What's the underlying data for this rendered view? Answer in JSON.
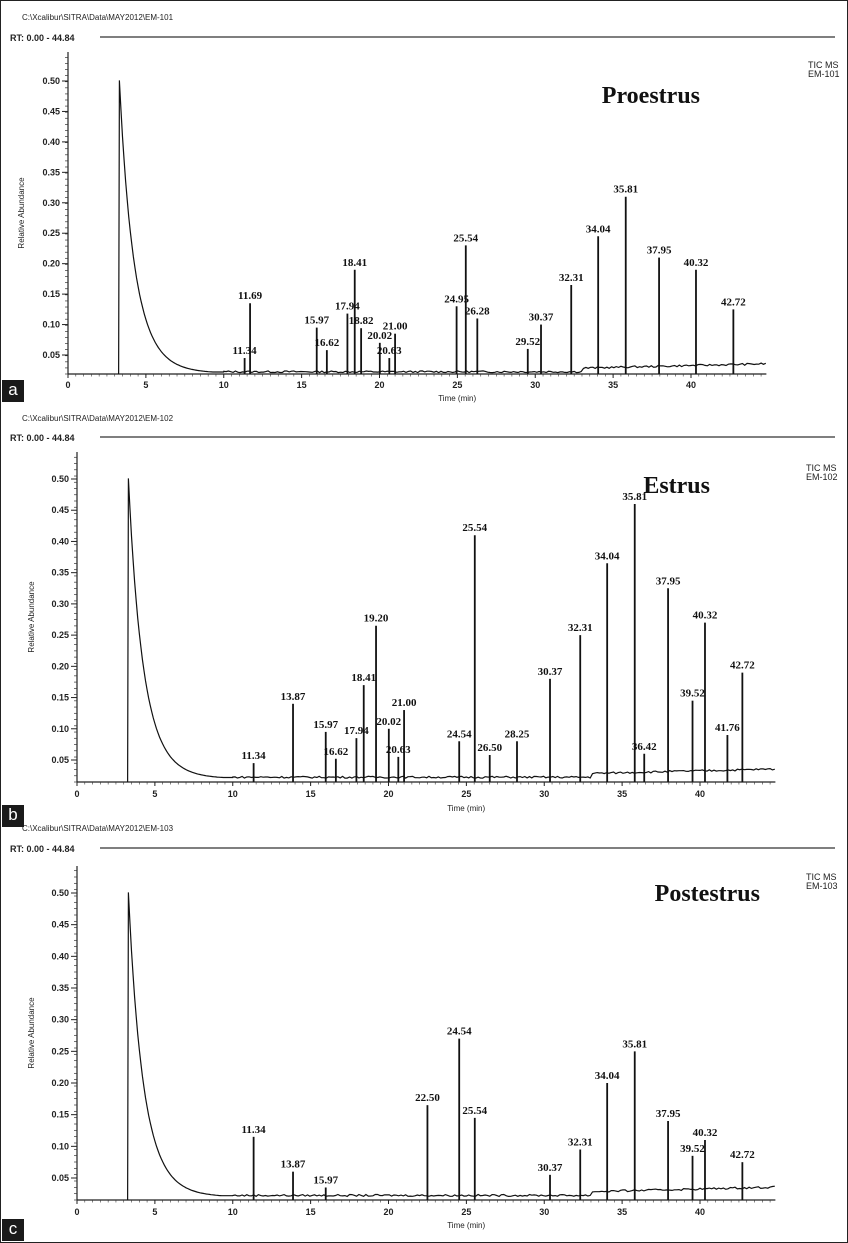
{
  "chart_data": [
    {
      "type": "line",
      "panel_tag": "a",
      "file_path": "C:\\Xcalibur\\SITRA\\Data\\MAY2012\\EM-101",
      "rt_range": "RT: 0.00 - 44.84",
      "title": "Proestrus",
      "tic_label": "TIC MS",
      "sample_label": "EM-101",
      "xlabel": "Time (min)",
      "ylabel": "Relative Abundance",
      "xlim": [
        0,
        44.84
      ],
      "ylim": [
        0.02,
        0.54
      ],
      "x_ticks": [
        "0",
        "5",
        "10",
        "15",
        "20",
        "25",
        "30",
        "35",
        "40"
      ],
      "y_ticks": [
        "0.05",
        "0.10",
        "0.15",
        "0.20",
        "0.25",
        "0.30",
        "0.35",
        "0.40",
        "0.45",
        "0.50"
      ],
      "solvent_peak": {
        "x": 3.3,
        "y": 0.5
      },
      "peaks": [
        {
          "label": "11.34",
          "x": 11.34,
          "y": 0.045
        },
        {
          "label": "11.69",
          "x": 11.69,
          "y": 0.135
        },
        {
          "label": "15.97",
          "x": 15.97,
          "y": 0.095
        },
        {
          "label": "16.62",
          "x": 16.62,
          "y": 0.058
        },
        {
          "label": "17.94",
          "x": 17.94,
          "y": 0.118
        },
        {
          "label": "18.41",
          "x": 18.41,
          "y": 0.19
        },
        {
          "label": "18.82",
          "x": 18.82,
          "y": 0.094
        },
        {
          "label": "20.02",
          "x": 20.02,
          "y": 0.07
        },
        {
          "label": "20.63",
          "x": 20.63,
          "y": 0.045
        },
        {
          "label": "21.00",
          "x": 21.0,
          "y": 0.085
        },
        {
          "label": "24.95",
          "x": 24.95,
          "y": 0.13
        },
        {
          "label": "25.54",
          "x": 25.54,
          "y": 0.23
        },
        {
          "label": "26.28",
          "x": 26.28,
          "y": 0.11
        },
        {
          "label": "29.52",
          "x": 29.52,
          "y": 0.06
        },
        {
          "label": "30.37",
          "x": 30.37,
          "y": 0.1
        },
        {
          "label": "32.31",
          "x": 32.31,
          "y": 0.165
        },
        {
          "label": "34.04",
          "x": 34.04,
          "y": 0.245
        },
        {
          "label": "35.81",
          "x": 35.81,
          "y": 0.31
        },
        {
          "label": "37.95",
          "x": 37.95,
          "y": 0.21
        },
        {
          "label": "40.32",
          "x": 40.32,
          "y": 0.19
        },
        {
          "label": "42.72",
          "x": 42.72,
          "y": 0.125
        }
      ]
    },
    {
      "type": "line",
      "panel_tag": "b",
      "file_path": "C:\\Xcalibur\\SITRA\\Data\\MAY2012\\EM-102",
      "rt_range": "RT: 0.00 - 44.84",
      "title": "Estrus",
      "tic_label": "TIC MS",
      "sample_label": "EM-102",
      "xlabel": "Time (min)",
      "ylabel": "Relative Abundance",
      "xlim": [
        0,
        44.84
      ],
      "ylim": [
        0.02,
        0.54
      ],
      "x_ticks": [
        "0",
        "5",
        "10",
        "15",
        "20",
        "25",
        "30",
        "35",
        "40"
      ],
      "y_ticks": [
        "0.05",
        "0.10",
        "0.15",
        "0.20",
        "0.25",
        "0.30",
        "0.35",
        "0.40",
        "0.45",
        "0.50"
      ],
      "solvent_peak": {
        "x": 3.3,
        "y": 0.5
      },
      "peaks": [
        {
          "label": "11.34",
          "x": 11.34,
          "y": 0.045
        },
        {
          "label": "13.87",
          "x": 13.87,
          "y": 0.14
        },
        {
          "label": "15.97",
          "x": 15.97,
          "y": 0.095
        },
        {
          "label": "16.62",
          "x": 16.62,
          "y": 0.052
        },
        {
          "label": "17.94",
          "x": 17.94,
          "y": 0.085
        },
        {
          "label": "18.41",
          "x": 18.41,
          "y": 0.17
        },
        {
          "label": "19.20",
          "x": 19.2,
          "y": 0.265
        },
        {
          "label": "20.02",
          "x": 20.02,
          "y": 0.1
        },
        {
          "label": "20.63",
          "x": 20.63,
          "y": 0.055
        },
        {
          "label": "21.00",
          "x": 21.0,
          "y": 0.13
        },
        {
          "label": "24.54",
          "x": 24.54,
          "y": 0.08
        },
        {
          "label": "25.54",
          "x": 25.54,
          "y": 0.41
        },
        {
          "label": "26.50",
          "x": 26.5,
          "y": 0.058
        },
        {
          "label": "28.25",
          "x": 28.25,
          "y": 0.08
        },
        {
          "label": "30.37",
          "x": 30.37,
          "y": 0.18
        },
        {
          "label": "32.31",
          "x": 32.31,
          "y": 0.25
        },
        {
          "label": "34.04",
          "x": 34.04,
          "y": 0.365
        },
        {
          "label": "35.81",
          "x": 35.81,
          "y": 0.46
        },
        {
          "label": "36.42",
          "x": 36.42,
          "y": 0.06
        },
        {
          "label": "37.95",
          "x": 37.95,
          "y": 0.325
        },
        {
          "label": "39.52",
          "x": 39.52,
          "y": 0.145
        },
        {
          "label": "40.32",
          "x": 40.32,
          "y": 0.27
        },
        {
          "label": "41.76",
          "x": 41.76,
          "y": 0.09
        },
        {
          "label": "42.72",
          "x": 42.72,
          "y": 0.19
        }
      ]
    },
    {
      "type": "line",
      "panel_tag": "c",
      "file_path": "C:\\Xcalibur\\SITRA\\Data\\MAY2012\\EM-103",
      "rt_range": "RT: 0.00 - 44.84",
      "title": "Postestrus",
      "tic_label": "TIC MS",
      "sample_label": "EM-103",
      "xlabel": "Time (min)",
      "ylabel": "Relative Abundance",
      "xlim": [
        0,
        44.84
      ],
      "ylim": [
        0.02,
        0.54
      ],
      "x_ticks": [
        "0",
        "5",
        "10",
        "15",
        "20",
        "25",
        "30",
        "35",
        "40"
      ],
      "y_ticks": [
        "0.05",
        "0.10",
        "0.15",
        "0.20",
        "0.25",
        "0.30",
        "0.35",
        "0.40",
        "0.45",
        "0.50"
      ],
      "solvent_peak": {
        "x": 3.3,
        "y": 0.5
      },
      "peaks": [
        {
          "label": "11.34",
          "x": 11.34,
          "y": 0.115
        },
        {
          "label": "13.87",
          "x": 13.87,
          "y": 0.06
        },
        {
          "label": "15.97",
          "x": 15.97,
          "y": 0.035
        },
        {
          "label": "22.50",
          "x": 22.5,
          "y": 0.165
        },
        {
          "label": "24.54",
          "x": 24.54,
          "y": 0.27
        },
        {
          "label": "25.54",
          "x": 25.54,
          "y": 0.145
        },
        {
          "label": "30.37",
          "x": 30.37,
          "y": 0.055
        },
        {
          "label": "32.31",
          "x": 32.31,
          "y": 0.095
        },
        {
          "label": "34.04",
          "x": 34.04,
          "y": 0.2
        },
        {
          "label": "35.81",
          "x": 35.81,
          "y": 0.25
        },
        {
          "label": "37.95",
          "x": 37.95,
          "y": 0.14
        },
        {
          "label": "39.52",
          "x": 39.52,
          "y": 0.085
        },
        {
          "label": "40.32",
          "x": 40.32,
          "y": 0.11
        },
        {
          "label": "42.72",
          "x": 42.72,
          "y": 0.075
        }
      ]
    }
  ]
}
